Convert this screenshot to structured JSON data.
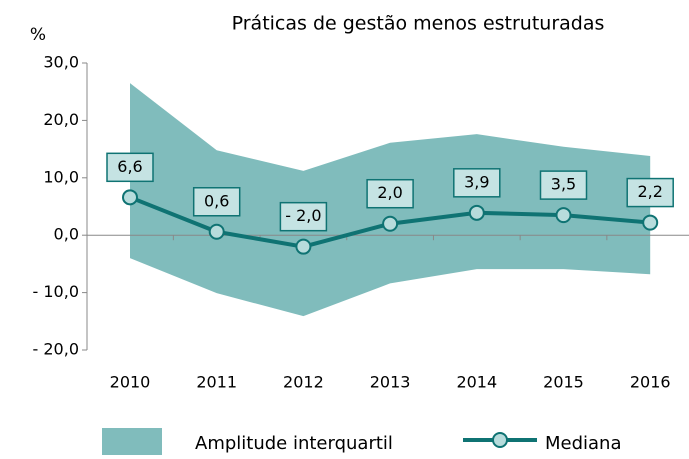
{
  "chart_data": {
    "type": "band-line",
    "title": "Práticas de gestão menos estruturadas",
    "y_label": "%",
    "categories": [
      "2010",
      "2011",
      "2012",
      "2013",
      "2014",
      "2015",
      "2016"
    ],
    "series": [
      {
        "name": "Amplitude interquartil",
        "color": "#80bcbc",
        "low": [
          -4.0,
          -10.1,
          -14.1,
          -8.4,
          -5.9,
          -5.9,
          -6.8
        ],
        "high": [
          26.5,
          14.8,
          11.2,
          16.1,
          17.6,
          15.4,
          13.8
        ]
      },
      {
        "name": "Mediana",
        "color": "#0f7373",
        "values": [
          6.6,
          0.6,
          -2.0,
          2.0,
          3.9,
          3.5,
          2.2
        ],
        "value_labels": [
          "6,6",
          "0,6",
          "- 2,0",
          "2,0",
          "3,9",
          "3,5",
          "2,2"
        ]
      }
    ],
    "ylim": [
      -20,
      30
    ],
    "yticks": [
      {
        "value": -20,
        "label": "- 20,0"
      },
      {
        "value": -10,
        "label": "- 10,0"
      },
      {
        "value": 0,
        "label": "0,0"
      },
      {
        "value": 10,
        "label": "10,0"
      },
      {
        "value": 20,
        "label": "20,0"
      },
      {
        "value": 30,
        "label": "30,0"
      }
    ],
    "grid": false
  }
}
